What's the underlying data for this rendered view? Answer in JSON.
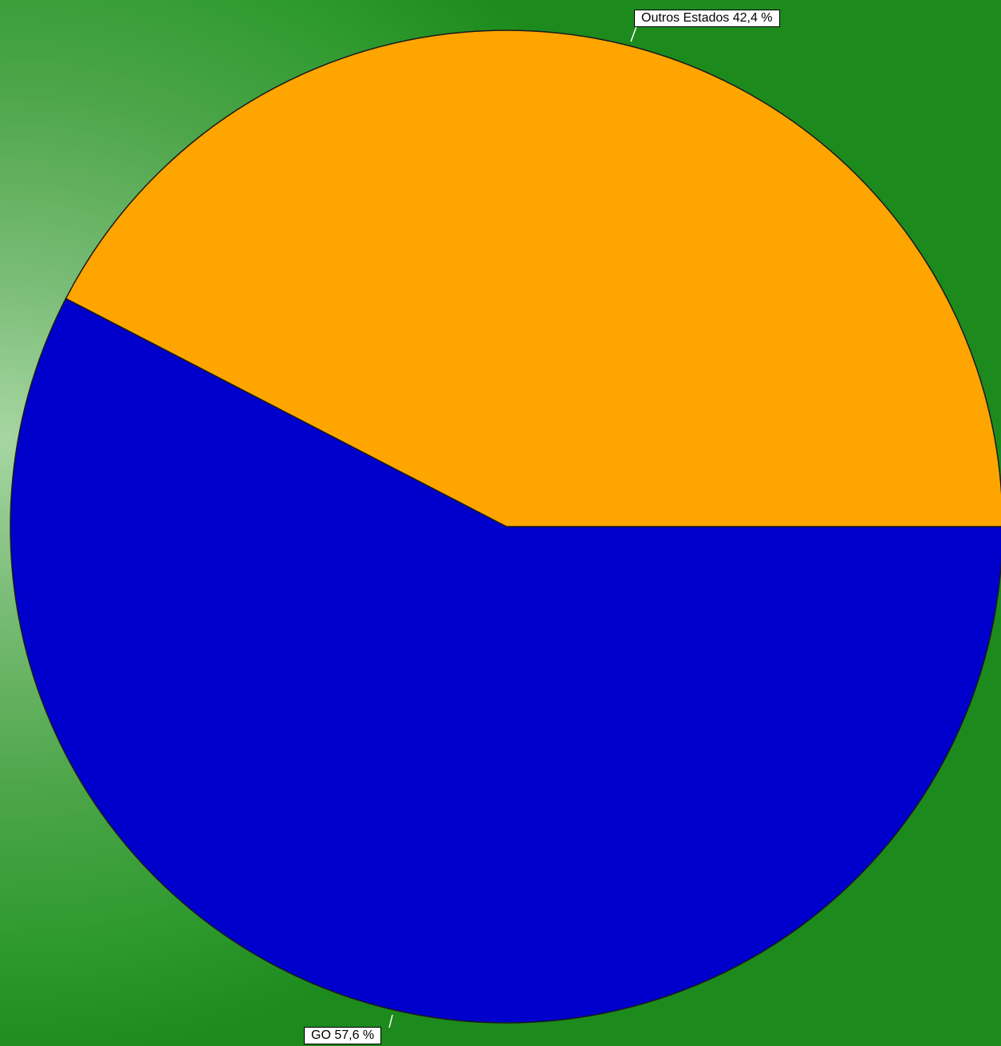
{
  "chart_data": {
    "type": "pie",
    "slices": [
      {
        "label": "GO",
        "value": 57.6,
        "color": "#0000cc",
        "text": "GO 57,6 %"
      },
      {
        "label": "Outros Estados",
        "value": 42.4,
        "color": "#ffa500",
        "text": "Outros Estados 42,4 %"
      }
    ],
    "start_angle_deg": 0,
    "direction": "clockwise",
    "legend": "none",
    "background": "green-gradient"
  }
}
